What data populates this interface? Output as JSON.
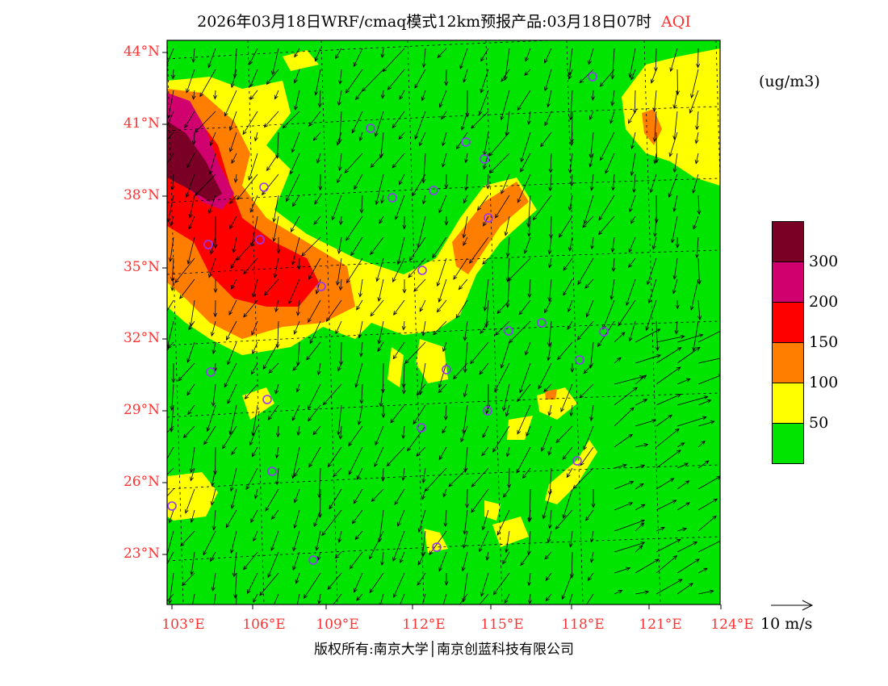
{
  "title": {
    "main": "2026年03月18日WRF/cmaq模式12km预报产品:03月18日07时",
    "variable": "AQI"
  },
  "lat_labels": [
    "44°N",
    "41°N",
    "38°N",
    "35°N",
    "32°N",
    "29°N",
    "26°N",
    "23°N"
  ],
  "lon_labels": [
    "103°E",
    "106°E",
    "109°E",
    "112°E",
    "115°E",
    "118°E",
    "121°E",
    "124°E"
  ],
  "colorbar": {
    "unit": "(ug/m3)",
    "levels": [
      {
        "color": "#7a0026",
        "label": ""
      },
      {
        "color": "#d0006e",
        "label": "300"
      },
      {
        "color": "#ff0000",
        "label": "200"
      },
      {
        "color": "#ff7e00",
        "label": "150"
      },
      {
        "color": "#ffff00",
        "label": "100"
      },
      {
        "color": "#00e400",
        "label": "50"
      }
    ]
  },
  "wind_reference": {
    "label": "10 m/s"
  },
  "copyright": "版权所有:南京大学│南京创蓝科技有限公司",
  "colors": {
    "background": "#00e400",
    "label": "#ff3030",
    "city_marker": "#9933ff"
  }
}
